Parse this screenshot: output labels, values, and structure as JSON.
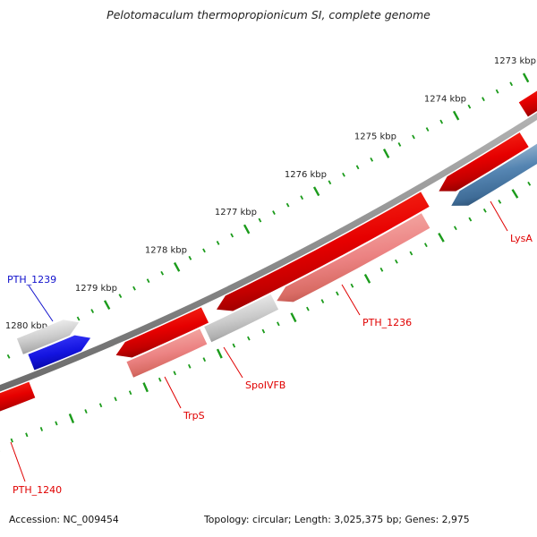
{
  "title": "Pelotomaculum thermopropionicum SI, complete genome",
  "footer": {
    "accession": "Accession: NC_009454",
    "stats": "Topology: circular; Length: 3,025,375 bp; Genes: 2,975"
  },
  "colors": {
    "tick_green": "#1b9b1b",
    "label_red": "#e00000",
    "label_blue": "#1111cc",
    "ruler_label_color": "#222222",
    "backbone_gray": "#9a9a9a",
    "gene_red": "#e60000",
    "gene_pink": "#ec8383",
    "gene_blue": "#1414e0",
    "gene_steelblue": "#5585b2",
    "gene_gray": "#cbcbcb"
  },
  "ruler": {
    "unit": "kbp",
    "major_interval_kbp": 1,
    "minor_interval_kbp": 0.2,
    "visible_major_labels": [
      "1273 kbp",
      "1274 kbp",
      "1275 kbp",
      "1276 kbp",
      "1277 kbp",
      "1278 kbp",
      "1279 kbp",
      "1280 kbp"
    ],
    "kbp_first": 1273,
    "kbp_last": 1280
  },
  "genome_map": {
    "type": "circular-genome-segment",
    "position_increases": "down-left",
    "genes": [
      {
        "id": "pth1239-gene",
        "label": "PTH_1239",
        "label_color": "#1111cc",
        "kbp": [
          1279.39,
          1280.21
        ],
        "side": "above",
        "lane": 1,
        "color": "gene_blue",
        "arrow": "right"
      },
      {
        "id": "gray-gene-upper",
        "label": "",
        "kbp": [
          1279.45,
          1280.27
        ],
        "side": "above",
        "lane": 2,
        "color": "gene_gray",
        "arrow": "right"
      },
      {
        "id": "red-gene-corner",
        "label": "",
        "kbp": [
          1272.95,
          1273.4
        ],
        "side": "above",
        "lane": 1,
        "color": "gene_red",
        "arrow": "none"
      },
      {
        "id": "pth1240-gene",
        "label": "PTH_1240",
        "label_color": "#e00000",
        "kbp": [
          1280.33,
          1280.9
        ],
        "side": "below",
        "lane": 1,
        "color": "gene_red",
        "arrow": "none"
      },
      {
        "id": "red-gene-b",
        "label": "",
        "kbp": [
          1277.96,
          1279.18
        ],
        "side": "below",
        "lane": 1,
        "color": "gene_red",
        "arrow": "left"
      },
      {
        "id": "red-gene-c",
        "label": "",
        "kbp": [
          1274.94,
          1277.8
        ],
        "side": "below",
        "lane": 1,
        "color": "gene_red",
        "arrow": "left"
      },
      {
        "id": "red-gene-d",
        "label": "",
        "kbp": [
          1273.58,
          1274.75
        ],
        "side": "below",
        "lane": 1,
        "color": "gene_red",
        "arrow": "left"
      },
      {
        "id": "trps-gene",
        "label": "TrpS",
        "label_color": "#e00000",
        "kbp": [
          1278.09,
          1279.09
        ],
        "side": "below",
        "lane": 2,
        "color": "gene_pink",
        "arrow": "none"
      },
      {
        "id": "spoivfb-gene",
        "label": "SpoIVFB",
        "label_color": "#e00000",
        "kbp": [
          1277.12,
          1278.03
        ],
        "side": "below",
        "lane": 2,
        "color": "gene_gray",
        "arrow": "none"
      },
      {
        "id": "pth1236-gene",
        "label": "PTH_1236",
        "label_color": "#e00000",
        "kbp": [
          1275.06,
          1277.09
        ],
        "side": "below",
        "lane": 2,
        "color": "gene_pink",
        "arrow": "left"
      },
      {
        "id": "lysa-gene",
        "label": "LysA",
        "label_color": "#e00000",
        "kbp": [
          1273.46,
          1274.71
        ],
        "side": "below",
        "lane": 2,
        "color": "gene_steelblue",
        "arrow": "left"
      }
    ]
  }
}
